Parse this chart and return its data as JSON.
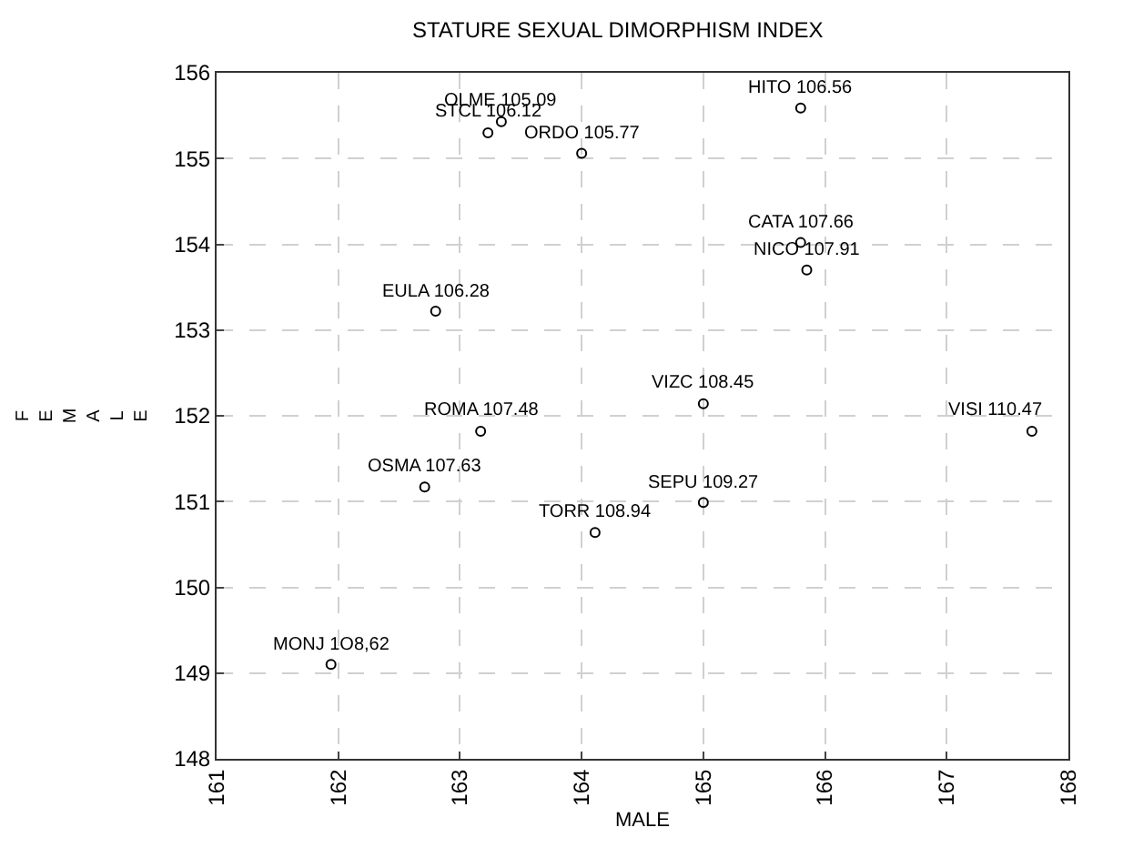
{
  "chart_data": {
    "type": "scatter",
    "title": "STATURE SEXUAL DIMORPHISM INDEX",
    "xlabel": "MALE",
    "ylabel": "FEMALE",
    "x": [
      163.34,
      163.23,
      164.0,
      165.8,
      165.8,
      165.85,
      162.8,
      165.0,
      163.17,
      167.7,
      162.71,
      165.0,
      164.11,
      161.94
    ],
    "series": [
      {
        "color": "#000000",
        "values": [
          155.43,
          155.3,
          155.06,
          155.59,
          154.02,
          153.7,
          153.22,
          152.14,
          151.82,
          151.82,
          151.17,
          150.99,
          150.64,
          149.1
        ]
      }
    ],
    "annotations": [
      {
        "text": "OLME 105.09",
        "x": 163.34,
        "y": 155.43
      },
      {
        "text": "STCL 106.12",
        "x": 163.23,
        "y": 155.3
      },
      {
        "text": "ORDO 105.77",
        "x": 164.0,
        "y": 155.06
      },
      {
        "text": "HITO 106.56",
        "x": 165.8,
        "y": 155.59
      },
      {
        "text": "CATA 107.66",
        "x": 165.8,
        "y": 154.02
      },
      {
        "text": "NICO 107.91",
        "x": 165.85,
        "y": 153.7
      },
      {
        "text": "EULA 106.28",
        "x": 162.8,
        "y": 153.22
      },
      {
        "text": "VIZC 108.45",
        "x": 165.0,
        "y": 152.14
      },
      {
        "text": "ROMA 107.48",
        "x": 163.17,
        "y": 151.82
      },
      {
        "text": "VISI 110.47",
        "x": 167.7,
        "y": 151.82
      },
      {
        "text": "OSMA 107.63",
        "x": 162.71,
        "y": 151.17
      },
      {
        "text": "SEPU 109.27",
        "x": 165.0,
        "y": 150.99
      },
      {
        "text": "TORR 108.94",
        "x": 164.11,
        "y": 150.64
      },
      {
        "text": "MONJ 1O8,62",
        "x": 161.94,
        "y": 149.1
      }
    ],
    "xlim": [
      161,
      168
    ],
    "xticks": [
      161,
      162,
      163,
      164,
      165,
      166,
      167,
      168
    ],
    "ylim": [
      148,
      156
    ],
    "yticks": [
      148,
      149,
      150,
      151,
      152,
      153,
      154,
      155,
      156
    ],
    "grid": true,
    "marker": "circle"
  }
}
